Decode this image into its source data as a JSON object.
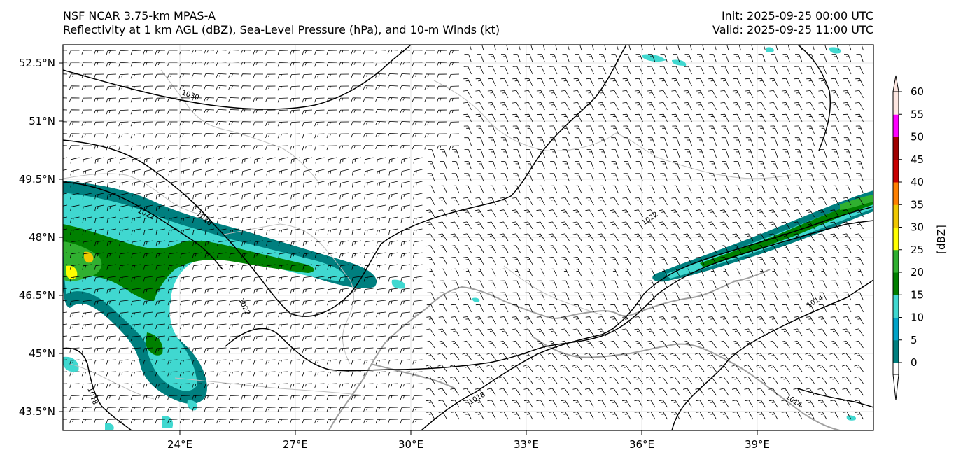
{
  "header": {
    "model": "NSF NCAR 3.75-km MPAS-A",
    "fields": "Reflectivity at 1 km AGL (dBZ), Sea-Level Pressure (hPa), and 10-m Winds (kt)",
    "init": "Init: 2025-09-25 00:00 UTC",
    "valid": "Valid: 2025-09-25 11:00 UTC"
  },
  "map": {
    "lon_range": [
      21,
      42
    ],
    "lat_range": [
      43,
      53
    ],
    "lat_ticks": [
      "43.5°N",
      "45°N",
      "46.5°N",
      "48°N",
      "49.5°N",
      "51°N",
      "52.5°N"
    ],
    "lon_ticks": [
      "24°E",
      "27°E",
      "30°E",
      "33°E",
      "36°E",
      "39°E"
    ],
    "isobar_labels": [
      "1030",
      "1022",
      "1026",
      "1022",
      "1022",
      "1018",
      "1018",
      "1014",
      "1014"
    ]
  },
  "colorbar": {
    "unit_label": "[dBZ]",
    "ticks": [
      "0",
      "5",
      "10",
      "15",
      "20",
      "25",
      "30",
      "35",
      "40",
      "45",
      "50",
      "55",
      "60"
    ],
    "colors": [
      "#007f7f",
      "#00a3c8",
      "#40d8d0",
      "#008000",
      "#30b030",
      "#ffff00",
      "#f0c800",
      "#ff8000",
      "#c80000",
      "#a00000",
      "#ff00ff",
      "#fde6e0"
    ]
  }
}
